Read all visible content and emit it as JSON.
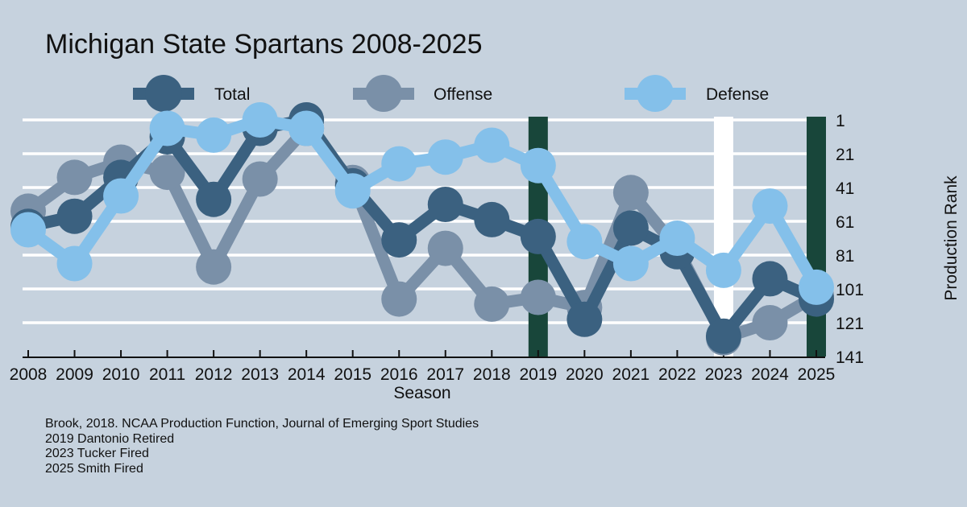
{
  "chart_data": {
    "type": "line",
    "title": "Michigan State Spartans 2008-2025",
    "xlabel": "Season",
    "ylabel": "Production Rank",
    "y_axis_position": "right",
    "y_inverted": true,
    "ylim": [
      1,
      141
    ],
    "yticks": [
      1,
      21,
      41,
      61,
      81,
      101,
      121,
      141
    ],
    "grid": "horizontal",
    "legend_placement": "top",
    "x": [
      2008,
      2009,
      2010,
      2011,
      2012,
      2013,
      2014,
      2015,
      2016,
      2017,
      2018,
      2019,
      2020,
      2021,
      2022,
      2023,
      2024,
      2025
    ],
    "series": [
      {
        "name": "Offense",
        "color": "#7a90a8",
        "values": [
          55,
          35,
          26,
          32,
          88,
          36,
          6,
          38,
          107,
          77,
          110,
          106,
          112,
          44,
          77,
          130,
          121,
          105
        ]
      },
      {
        "name": "Total",
        "color": "#3b6180",
        "values": [
          64,
          58,
          35,
          11,
          48,
          6,
          1,
          40,
          72,
          51,
          60,
          70,
          119,
          65,
          79,
          129,
          95,
          107
        ]
      },
      {
        "name": "Defense",
        "color": "#84c0ea",
        "values": [
          66,
          86,
          46,
          6,
          10,
          1,
          6,
          43,
          27,
          23,
          16,
          28,
          73,
          86,
          71,
          90,
          52,
          100
        ]
      }
    ],
    "legend": [
      {
        "name": "Total",
        "color": "#3b6180"
      },
      {
        "name": "Offense",
        "color": "#7a90a8"
      },
      {
        "name": "Defense",
        "color": "#84c0ea"
      }
    ],
    "markers": [
      {
        "season": 2019,
        "color": "#18463a",
        "label": "2019 Dantonio Retired"
      },
      {
        "season": 2023,
        "color": "#ffffff",
        "label": "2023 Tucker Fired"
      },
      {
        "season": 2025,
        "color": "#18463a",
        "label": "2025 Smith Fired"
      }
    ]
  },
  "notes": [
    "Brook, 2018. NCAA Production Function, Journal of Emerging Sport Studies",
    "2019 Dantonio Retired",
    "2023 Tucker Fired",
    "2025 Smith Fired"
  ]
}
